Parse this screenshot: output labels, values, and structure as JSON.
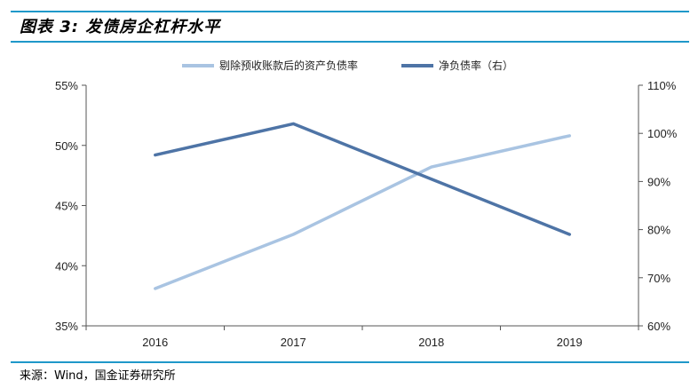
{
  "figure_title": "图表 3:  发债房企杠杆水平",
  "source": "来源：Wind，国金证券研究所",
  "colors": {
    "rule": "#1f98c9",
    "series_light": "#a9c4e2",
    "series_dark": "#4e74a6"
  },
  "chart_data": {
    "type": "line",
    "categories": [
      "2016",
      "2017",
      "2018",
      "2019"
    ],
    "series": [
      {
        "name": "剔除预收账款后的资产负债率",
        "axis": "left",
        "values": [
          38.1,
          42.6,
          48.2,
          50.8
        ]
      },
      {
        "name": "净负债率（右）",
        "axis": "right",
        "values": [
          95.5,
          102.0,
          90.5,
          79.0
        ]
      }
    ],
    "y_left": {
      "ylim": [
        35,
        55
      ],
      "ticks": [
        "35%",
        "40%",
        "45%",
        "50%",
        "55%"
      ]
    },
    "y_right": {
      "ylim": [
        60,
        110
      ],
      "ticks": [
        "60%",
        "70%",
        "80%",
        "90%",
        "100%",
        "110%"
      ]
    },
    "grid": false,
    "legend_position": "top"
  }
}
